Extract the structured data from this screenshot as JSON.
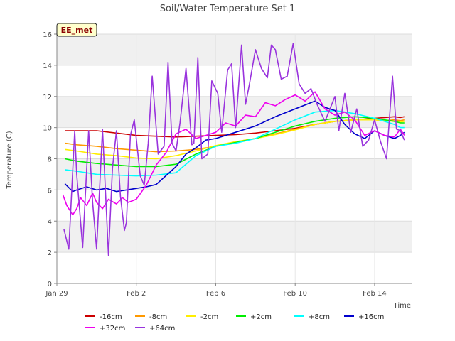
{
  "chart_data": {
    "type": "line",
    "title": "Soil/Water Temperature Set 1",
    "xlabel": "Time",
    "ylabel": "Temperature (C)",
    "site_label": "EE_met",
    "xlim": [
      0,
      17.9
    ],
    "ylim": [
      0,
      16
    ],
    "grid": true,
    "legend_position": "bottom",
    "x_ticks": [
      {
        "x": 0,
        "label": "Jan 29"
      },
      {
        "x": 4,
        "label": "Feb 2"
      },
      {
        "x": 8,
        "label": "Feb 6"
      },
      {
        "x": 12,
        "label": "Feb 10"
      },
      {
        "x": 16,
        "label": "Feb 14"
      }
    ],
    "y_ticks": [
      0,
      2,
      4,
      6,
      8,
      10,
      12,
      14,
      16
    ],
    "series": [
      {
        "name": "-16cm",
        "color": "#cc0000",
        "x": [
          0.4,
          1,
          2,
          3,
          4,
          5,
          6,
          7,
          8,
          9,
          10,
          11,
          12,
          13,
          14,
          15,
          16,
          16.5,
          17,
          17.3,
          17.5
        ],
        "y": [
          9.8,
          9.8,
          9.8,
          9.65,
          9.5,
          9.45,
          9.4,
          9.45,
          9.5,
          9.55,
          9.65,
          9.8,
          9.95,
          10.2,
          10.4,
          10.5,
          10.6,
          10.65,
          10.7,
          10.65,
          10.7
        ]
      },
      {
        "name": "-8cm",
        "color": "#ff9900",
        "x": [
          0.4,
          1,
          2,
          3,
          4,
          5,
          6,
          7,
          8,
          9,
          10,
          11,
          12,
          13,
          14,
          15,
          16,
          16.5,
          17,
          17.3,
          17.5
        ],
        "y": [
          9.0,
          8.9,
          8.8,
          8.65,
          8.55,
          8.45,
          8.5,
          8.6,
          8.8,
          9.1,
          9.3,
          9.6,
          9.9,
          10.2,
          10.4,
          10.5,
          10.5,
          10.45,
          10.5,
          10.45,
          10.5
        ]
      },
      {
        "name": "-2cm",
        "color": "#ffee00",
        "x": [
          0.4,
          1,
          2,
          3,
          4,
          5,
          6,
          7,
          8,
          9,
          10,
          11,
          12,
          13,
          14,
          15,
          16,
          16.5,
          17,
          17.3,
          17.5
        ],
        "y": [
          8.6,
          8.5,
          8.3,
          8.2,
          8.05,
          8.0,
          8.2,
          8.5,
          8.85,
          9.1,
          9.3,
          9.55,
          9.85,
          10.2,
          10.4,
          10.5,
          10.5,
          10.45,
          10.4,
          10.35,
          10.4
        ]
      },
      {
        "name": "+2cm",
        "color": "#00ee00",
        "x": [
          0.4,
          1,
          2,
          3,
          4,
          5,
          6,
          7,
          8,
          9,
          10,
          11,
          12,
          13,
          14,
          15,
          16,
          16.5,
          17,
          17.3,
          17.5
        ],
        "y": [
          8.0,
          7.85,
          7.7,
          7.6,
          7.5,
          7.5,
          7.65,
          8.3,
          8.8,
          9.05,
          9.3,
          9.7,
          10.1,
          10.4,
          10.6,
          10.7,
          10.6,
          10.5,
          10.4,
          10.3,
          10.3
        ]
      },
      {
        "name": "+8cm",
        "color": "#00ffff",
        "x": [
          0.4,
          1,
          2,
          3,
          4,
          5,
          6,
          7,
          8,
          9,
          10,
          11,
          12,
          13,
          14,
          15,
          16,
          16.5,
          17,
          17.3,
          17.5
        ],
        "y": [
          7.3,
          7.2,
          7.0,
          6.95,
          6.9,
          6.95,
          7.1,
          8.2,
          8.8,
          9.0,
          9.3,
          9.9,
          10.5,
          11.0,
          11.1,
          10.9,
          10.6,
          10.4,
          10.2,
          10.0,
          10.0
        ]
      },
      {
        "name": "+16cm",
        "color": "#0000cc",
        "x": [
          0.4,
          0.8,
          1,
          1.5,
          2,
          2.5,
          3,
          3.5,
          4,
          4.5,
          5,
          6,
          6.5,
          7,
          7.5,
          8,
          9,
          10,
          11,
          12,
          13,
          13.5,
          14,
          14.5,
          15,
          15.5,
          16,
          16.5,
          17,
          17.3,
          17.5
        ],
        "y": [
          6.4,
          5.9,
          6.0,
          6.2,
          6.0,
          6.1,
          5.9,
          6.0,
          6.1,
          6.2,
          6.35,
          7.5,
          8.3,
          8.7,
          9.2,
          9.3,
          9.7,
          10.1,
          10.7,
          11.2,
          11.7,
          11.3,
          11.1,
          10.2,
          9.6,
          9.3,
          9.8,
          9.5,
          9.3,
          9.5,
          9.7
        ]
      },
      {
        "name": "+32cm",
        "color": "#ee00ee",
        "x": [
          0.3,
          0.5,
          0.8,
          1.0,
          1.2,
          1.5,
          1.8,
          2.0,
          2.3,
          2.6,
          3.0,
          3.3,
          3.6,
          4.0,
          4.5,
          5.0,
          5.5,
          6.0,
          6.5,
          7.0,
          7.5,
          8.0,
          8.5,
          9.0,
          9.5,
          10.0,
          10.5,
          11.0,
          11.5,
          12.0,
          12.5,
          13.0,
          13.5,
          14.0,
          14.5,
          15.0,
          15.5,
          16.0,
          16.5,
          17.0,
          17.3,
          17.5
        ],
        "y": [
          5.7,
          5.0,
          4.4,
          4.8,
          5.5,
          5.0,
          5.8,
          5.2,
          4.8,
          5.4,
          5.1,
          5.5,
          5.2,
          5.4,
          6.3,
          7.6,
          8.4,
          9.6,
          9.9,
          9.3,
          9.5,
          9.7,
          10.3,
          10.1,
          10.8,
          10.7,
          11.6,
          11.4,
          11.8,
          12.1,
          11.7,
          12.3,
          11.2,
          10.8,
          11.0,
          10.5,
          9.5,
          9.8,
          9.5,
          9.4,
          9.9,
          9.5
        ]
      },
      {
        "name": "+64cm",
        "color": "#9933dd",
        "x": [
          0.35,
          0.6,
          0.9,
          1.0,
          1.3,
          1.6,
          1.8,
          2.0,
          2.3,
          2.6,
          2.8,
          3.0,
          3.2,
          3.4,
          3.5,
          3.7,
          3.9,
          4.2,
          4.4,
          4.6,
          4.8,
          5.1,
          5.4,
          5.6,
          5.8,
          6.0,
          6.2,
          6.5,
          6.8,
          6.9,
          7.1,
          7.3,
          7.6,
          7.8,
          8.1,
          8.3,
          8.6,
          8.8,
          9.0,
          9.3,
          9.5,
          9.7,
          10.0,
          10.3,
          10.6,
          10.8,
          11.0,
          11.3,
          11.6,
          11.9,
          12.2,
          12.5,
          12.8,
          13.1,
          13.5,
          14.0,
          14.2,
          14.5,
          14.8,
          15.1,
          15.4,
          15.7,
          16.0,
          16.3,
          16.6,
          16.9,
          17.1,
          17.3,
          17.5
        ],
        "y": [
          3.5,
          2.2,
          9.8,
          7.0,
          2.3,
          9.8,
          5.2,
          2.2,
          9.9,
          1.8,
          7.4,
          9.8,
          5.6,
          3.4,
          3.9,
          9.5,
          10.5,
          6.9,
          6.3,
          9.0,
          13.3,
          8.3,
          8.8,
          14.2,
          9.0,
          8.5,
          10.3,
          13.8,
          8.9,
          9.0,
          14.5,
          8.0,
          8.3,
          13.0,
          12.2,
          9.7,
          13.7,
          14.1,
          10.0,
          15.3,
          11.5,
          12.8,
          15.0,
          13.8,
          13.2,
          15.3,
          15.0,
          13.1,
          13.3,
          15.4,
          12.8,
          12.2,
          12.5,
          11.5,
          10.4,
          12.0,
          9.8,
          12.2,
          9.7,
          11.2,
          8.8,
          9.2,
          10.5,
          9.1,
          8.0,
          13.3,
          9.9,
          9.8,
          9.2
        ]
      }
    ]
  }
}
